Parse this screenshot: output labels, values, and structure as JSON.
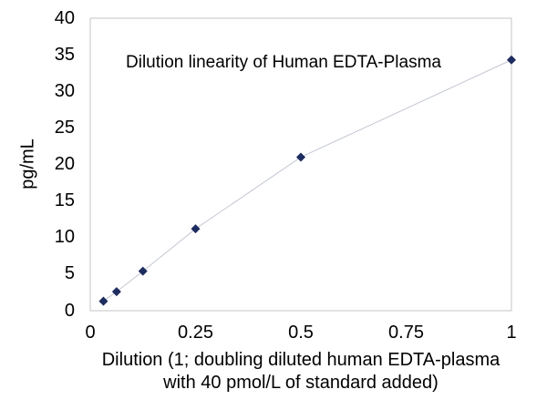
{
  "chart_data": {
    "type": "scatter",
    "title": "Dilution linearity of Human EDTA-Plasma",
    "xlabel": "Dilution (1; doubling diluted human EDTA-plasma with 40 pmol/L of standard added)",
    "xlabel_lines": [
      "Dilution (1; doubling diluted human EDTA-plasma",
      "with 40 pmol/L of standard added)"
    ],
    "ylabel": "pg/mL",
    "x": [
      0.03125,
      0.0625,
      0.125,
      0.25,
      0.5,
      1
    ],
    "y": [
      1.3,
      2.6,
      5.4,
      11.2,
      21.0,
      34.3
    ],
    "xlim": [
      0,
      1
    ],
    "ylim": [
      0,
      40
    ],
    "x_ticks": [
      0,
      0.25,
      0.5,
      0.75,
      1
    ],
    "x_tick_labels": [
      "0",
      "0.25",
      "0.5",
      "0.75",
      "1"
    ],
    "y_ticks": [
      0,
      5,
      10,
      15,
      20,
      25,
      30,
      35,
      40
    ],
    "y_tick_labels": [
      "0",
      "5",
      "10",
      "15",
      "20",
      "25",
      "30",
      "35",
      "40"
    ],
    "grid": false,
    "legend": "none",
    "marker_shape": "diamond",
    "marker_color": "#1e2d5f",
    "line_color": "#c3c7d2",
    "axis_color": "#c4c4c4",
    "text_color": "#000000",
    "background_color": "#ffffff"
  }
}
